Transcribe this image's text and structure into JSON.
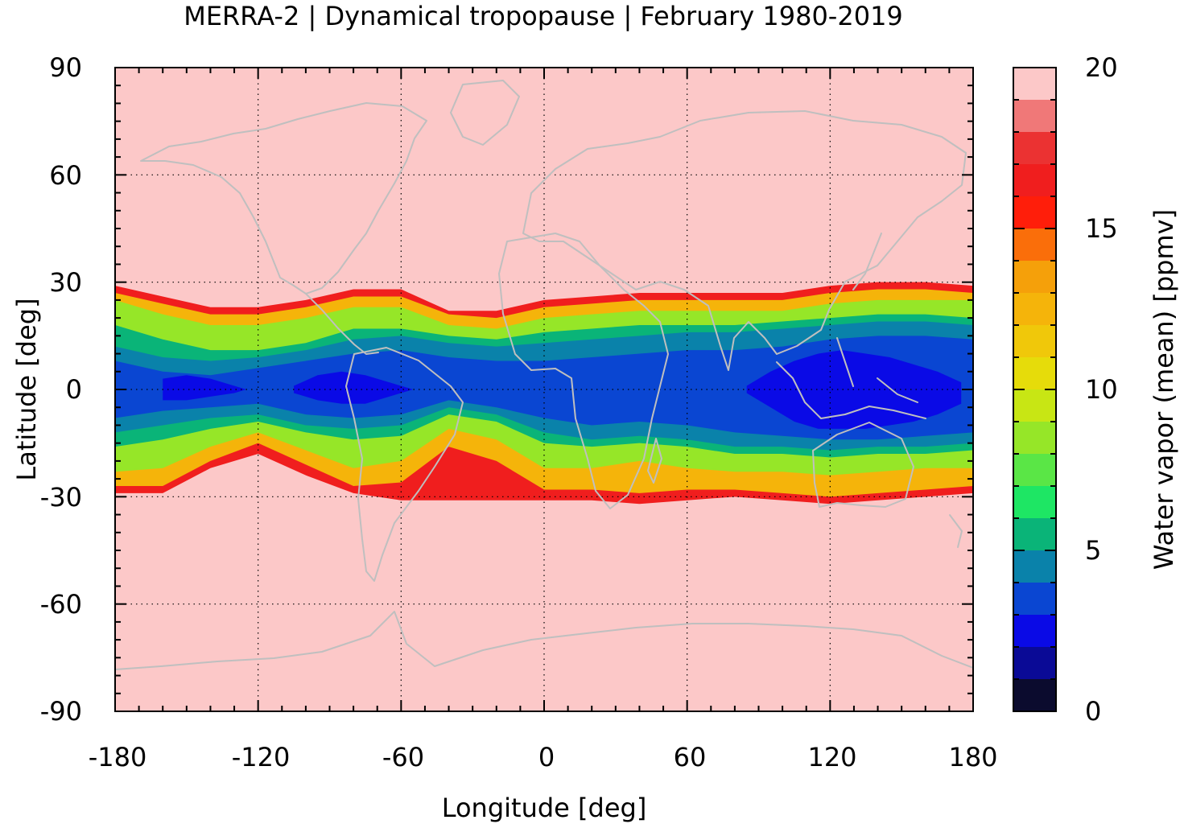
{
  "chart_data": {
    "type": "heatmap",
    "title": "MERRA-2 | Dynamical tropopause | February 1980-2019",
    "xlabel": "Longitude [deg]",
    "ylabel": "Latitude [deg]",
    "xlim": [
      -180,
      180
    ],
    "ylim": [
      -90,
      90
    ],
    "x_ticks": [
      -180,
      -120,
      -60,
      0,
      60,
      120,
      180
    ],
    "y_ticks": [
      90,
      60,
      30,
      0,
      -30,
      -60,
      -90
    ],
    "grid": true,
    "grid_style": "dotted",
    "background_value": 20,
    "coastlines_color": "#bfbfbf",
    "colorbar": {
      "label": "Water vapor (mean) [ppmv]",
      "range": [
        0,
        20
      ],
      "ticks": [
        0,
        5,
        10,
        15,
        20
      ],
      "levels": [
        {
          "from": 0,
          "to": 1,
          "color": "#0b0b2e"
        },
        {
          "from": 1,
          "to": 2,
          "color": "#0a0a96"
        },
        {
          "from": 2,
          "to": 3,
          "color": "#0a0ae6"
        },
        {
          "from": 3,
          "to": 4,
          "color": "#0a46d2"
        },
        {
          "from": 4,
          "to": 5,
          "color": "#0a82aa"
        },
        {
          "from": 5,
          "to": 6,
          "color": "#0ab478"
        },
        {
          "from": 6,
          "to": 7,
          "color": "#1ee664"
        },
        {
          "from": 7,
          "to": 8,
          "color": "#5ae646"
        },
        {
          "from": 8,
          "to": 9,
          "color": "#96e628"
        },
        {
          "from": 9,
          "to": 10,
          "color": "#c8e614"
        },
        {
          "from": 10,
          "to": 11,
          "color": "#e6dc0a"
        },
        {
          "from": 11,
          "to": 12,
          "color": "#f0c80a"
        },
        {
          "from": 12,
          "to": 13,
          "color": "#f5b40a"
        },
        {
          "from": 13,
          "to": 14,
          "color": "#f5a00a"
        },
        {
          "from": 14,
          "to": 15,
          "color": "#fa6e0a"
        },
        {
          "from": 15,
          "to": 16,
          "color": "#ff1e0a"
        },
        {
          "from": 16,
          "to": 17,
          "color": "#f01e1e"
        },
        {
          "from": 17,
          "to": 18,
          "color": "#eb3232"
        },
        {
          "from": 18,
          "to": 19,
          "color": "#f07878"
        },
        {
          "from": 19,
          "to": 20,
          "color": "#fcc8c8"
        }
      ]
    },
    "field_bands": [
      {
        "value": 19.5,
        "lon": [
          -180,
          -160,
          -140,
          -120,
          -100,
          -80,
          -60,
          -40,
          -20,
          0,
          20,
          40,
          60,
          80,
          100,
          120,
          140,
          160,
          180
        ],
        "lat_north": [
          30,
          27,
          24,
          24,
          26,
          29,
          29,
          23,
          23,
          26,
          27,
          28,
          28,
          28,
          28,
          30,
          31,
          31,
          30
        ],
        "lat_south": [
          -30,
          -30,
          -29,
          -30,
          -30,
          -31,
          -32,
          -32,
          -33,
          -33,
          -33,
          -34,
          -33,
          -32,
          -33,
          -34,
          -33,
          -32,
          -30
        ]
      },
      {
        "value": 16,
        "lon": [
          -180,
          -160,
          -140,
          -120,
          -100,
          -80,
          -60,
          -40,
          -20,
          0,
          20,
          40,
          60,
          80,
          100,
          120,
          140,
          160,
          180
        ],
        "lat_north": [
          29,
          26,
          23,
          23,
          25,
          28,
          28,
          22,
          22,
          25,
          26,
          27,
          27,
          27,
          27,
          29,
          30,
          30,
          29
        ],
        "lat_south": [
          -29,
          -29,
          -22,
          -18,
          -24,
          -29,
          -31,
          -31,
          -31,
          -31,
          -31,
          -32,
          -31,
          -30,
          -31,
          -32,
          -31,
          -30,
          -29
        ]
      },
      {
        "value": 12.5,
        "lon": [
          -180,
          -160,
          -140,
          -120,
          -100,
          -80,
          -60,
          -40,
          -20,
          0,
          20,
          40,
          60,
          80,
          100,
          120,
          140,
          160,
          180
        ],
        "lat_north": [
          27,
          24,
          21,
          21,
          23,
          26,
          26,
          21,
          20,
          23,
          24,
          25,
          25,
          25,
          25,
          27,
          28,
          28,
          27
        ],
        "lat_south": [
          -27,
          -27,
          -20,
          -15,
          -21,
          -27,
          -26,
          -16,
          -20,
          -28,
          -28,
          -29,
          -28,
          -28,
          -29,
          -30,
          -29,
          -28,
          -27
        ]
      },
      {
        "value": 8.5,
        "lon": [
          -180,
          -160,
          -140,
          -120,
          -100,
          -80,
          -60,
          -40,
          -20,
          0,
          20,
          40,
          60,
          80,
          100,
          120,
          140,
          160,
          180
        ],
        "lat_north": [
          25,
          21,
          18,
          18,
          20,
          23,
          23,
          18,
          17,
          20,
          21,
          22,
          22,
          22,
          22,
          24,
          25,
          25,
          25
        ],
        "lat_south": [
          -23,
          -22,
          -16,
          -12,
          -17,
          -22,
          -20,
          -11,
          -14,
          -22,
          -22,
          -20,
          -22,
          -23,
          -23,
          -24,
          -23,
          -22,
          -22
        ]
      },
      {
        "value": 5.5,
        "lon": [
          -180,
          -160,
          -140,
          -120,
          -100,
          -80,
          -60,
          -40,
          -20,
          0,
          20,
          40,
          60,
          80,
          100,
          120,
          140,
          160,
          180
        ],
        "lat_north": [
          18,
          14,
          11,
          11,
          13,
          17,
          17,
          15,
          14,
          16,
          17,
          18,
          18,
          18,
          19,
          20,
          21,
          21,
          20
        ],
        "lat_south": [
          -16,
          -14,
          -11,
          -9,
          -12,
          -14,
          -13,
          -7,
          -9,
          -15,
          -16,
          -15,
          -16,
          -18,
          -18,
          -19,
          -18,
          -18,
          -17
        ]
      },
      {
        "value": 4.5,
        "lon": [
          -180,
          -160,
          -140,
          -120,
          -100,
          -80,
          -60,
          -40,
          -20,
          0,
          20,
          40,
          60,
          80,
          100,
          120,
          140,
          160,
          180
        ],
        "lat_north": [
          12,
          9,
          8,
          9,
          11,
          14,
          15,
          13,
          12,
          13,
          14,
          15,
          16,
          16,
          17,
          18,
          19,
          19,
          18
        ],
        "lat_south": [
          -12,
          -10,
          -8,
          -7,
          -10,
          -11,
          -10,
          -5,
          -7,
          -12,
          -14,
          -13,
          -14,
          -16,
          -16,
          -17,
          -16,
          -16,
          -15
        ]
      },
      {
        "value": 3.5,
        "lon": [
          -180,
          -160,
          -140,
          -120,
          -100,
          -80,
          -60,
          -40,
          -20,
          0,
          20,
          40,
          60,
          80,
          100,
          120,
          140,
          160,
          180
        ],
        "lat_north": [
          8,
          5,
          4,
          6,
          8,
          10,
          11,
          9,
          8,
          8,
          9,
          10,
          11,
          11,
          12,
          14,
          15,
          15,
          14
        ],
        "lat_south": [
          -8,
          -6,
          -5,
          -4,
          -7,
          -8,
          -7,
          -3,
          -5,
          -8,
          -10,
          -9,
          -10,
          -12,
          -13,
          -14,
          -14,
          -13,
          -12
        ]
      },
      {
        "value": 2.5,
        "lon": [
          -160,
          -150,
          -140,
          -130,
          -125
        ],
        "lat_north": [
          3,
          4,
          3,
          1,
          0
        ],
        "lat_south": [
          -3,
          -3,
          -2,
          -1,
          0
        ]
      },
      {
        "value": 2.5,
        "lon": [
          -105,
          -95,
          -85,
          -75,
          -65,
          -55
        ],
        "lat_north": [
          1,
          4,
          5,
          4,
          2,
          0
        ],
        "lat_south": [
          -1,
          -3,
          -4,
          -4,
          -2,
          0
        ]
      },
      {
        "value": 2.5,
        "lon": [
          85,
          95,
          105,
          115,
          125,
          135,
          145,
          155,
          165,
          175
        ],
        "lat_north": [
          1,
          5,
          8,
          10,
          11,
          10,
          9,
          7,
          5,
          2
        ],
        "lat_south": [
          -1,
          -5,
          -9,
          -11,
          -11,
          -11,
          -10,
          -9,
          -7,
          -4
        ]
      }
    ]
  }
}
